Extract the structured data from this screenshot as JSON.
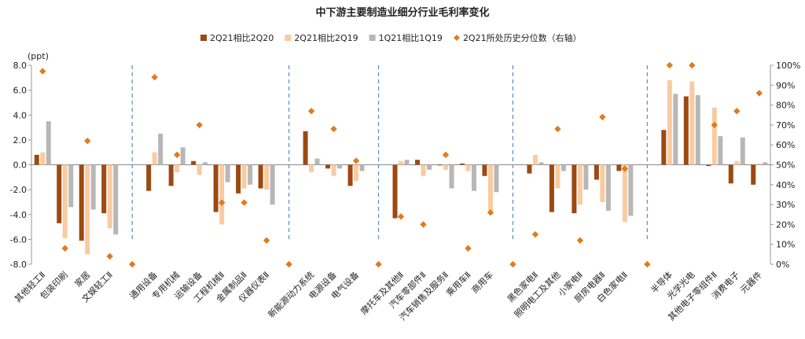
{
  "chart_data": {
    "type": "bar",
    "title": "中下游主要制造业细分行业毛利率变化",
    "y_left_unit": "(ppt)",
    "ylim": [
      -8,
      8
    ],
    "y_left_ticks": [
      "8.0",
      "6.0",
      "4.0",
      "2.0",
      "0.0",
      "-2.0",
      "-4.0",
      "-6.0",
      "-8.0"
    ],
    "y_right_lim": [
      0,
      100
    ],
    "y_right_ticks": [
      "100%",
      "90%",
      "80%",
      "70%",
      "60%",
      "50%",
      "40%",
      "30%",
      "20%",
      "10%",
      "0%"
    ],
    "grid": false,
    "legend_position": "top",
    "categories": [
      "其他轻工Ⅱ",
      "包装印刷",
      "家居",
      "文娱轻工Ⅱ",
      "",
      "通用设备",
      "专用机械",
      "运输设备",
      "工程机械Ⅱ",
      "金属制品Ⅱ",
      "仪器仪表Ⅱ",
      "",
      "新能源动力系统",
      "电源设备",
      "电气设备",
      "",
      "摩托车及其他Ⅱ",
      "汽车零部件Ⅱ",
      "汽车销售及服务Ⅱ",
      "乘用车Ⅱ",
      "商用车",
      "",
      "黑色家电Ⅱ",
      "照明电工及其他",
      "小家电Ⅱ",
      "厨房电器Ⅱ",
      "白色家电Ⅱ",
      "",
      "半导体",
      "光学光电",
      "其他电子零组件Ⅱ",
      "消费电子",
      "元器件"
    ],
    "series": [
      {
        "name": "2Q21相比2Q20",
        "color": "#9b4a12",
        "kind": "bar",
        "values": [
          0.8,
          -4.7,
          -6.1,
          -3.9,
          null,
          -2.1,
          -1.7,
          0.3,
          -3.8,
          -2.3,
          -1.9,
          null,
          2.7,
          -0.3,
          -1.7,
          null,
          -4.3,
          0.4,
          0.0,
          0.1,
          -0.9,
          null,
          -0.7,
          -3.8,
          -3.9,
          -1.2,
          -0.5,
          null,
          2.8,
          5.5,
          -0.1,
          -1.5,
          -1.6
        ]
      },
      {
        "name": "2Q21相比2Q19",
        "color": "#f9cba0",
        "kind": "bar",
        "values": [
          1.0,
          -5.9,
          -7.2,
          -5.1,
          null,
          1.0,
          -0.6,
          -0.8,
          -4.8,
          -1.9,
          -2.0,
          null,
          -0.6,
          -0.9,
          -1.3,
          null,
          0.3,
          -0.9,
          -0.4,
          -0.5,
          -3.7,
          null,
          0.8,
          -1.9,
          -3.2,
          -3.0,
          -4.6,
          null,
          6.8,
          6.7,
          4.6,
          0.3,
          0.1
        ]
      },
      {
        "name": "1Q21相比1Q19",
        "color": "#b7b7b7",
        "kind": "bar",
        "values": [
          3.5,
          -3.4,
          -3.6,
          -5.6,
          null,
          2.5,
          1.4,
          0.2,
          -1.4,
          -1.6,
          -3.2,
          null,
          0.5,
          -0.3,
          -0.5,
          null,
          0.4,
          -0.4,
          -1.9,
          -2.1,
          -2.2,
          null,
          0.2,
          -0.5,
          -2.0,
          -3.7,
          -4.1,
          null,
          5.7,
          5.6,
          2.3,
          2.2,
          0.2
        ]
      },
      {
        "name": "2Q21所处历史分位数（右轴）",
        "color": "#e07b1e",
        "kind": "marker",
        "axis": "right",
        "values": [
          97,
          8,
          62,
          4,
          0,
          94,
          55,
          70,
          31,
          31,
          12,
          0,
          77,
          68,
          52,
          0,
          24,
          20,
          55,
          8,
          26,
          0,
          15,
          68,
          12,
          74,
          48,
          0,
          100,
          100,
          70,
          77,
          86
        ]
      }
    ]
  }
}
